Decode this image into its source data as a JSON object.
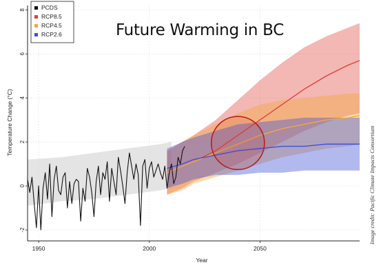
{
  "title": "Future Warming in BC",
  "credit": "Image credit: Pacific Climate Impacts Consortium",
  "chart_data": {
    "type": "line",
    "title": "Future Warming in BC",
    "xlabel": "Year",
    "ylabel": "Temperature Change (°C)",
    "xlim": [
      1945,
      2095
    ],
    "ylim": [
      -2.5,
      8.2
    ],
    "xticks": [
      1950,
      2000,
      2050
    ],
    "yticks": [
      -2,
      0,
      2,
      4,
      6,
      8
    ],
    "grid": true,
    "legend": "top-left",
    "colors": {
      "PCDS": "#111111",
      "RCP8.5": "#e0413a",
      "RCP4.5": "#f2a93b",
      "RCP2.6": "#3f4fd6",
      "historical_band": "#d9d9d9"
    },
    "legend_entries": [
      {
        "name": "PCDS",
        "color": "#111111"
      },
      {
        "name": "RCP8.5",
        "color": "#e0413a"
      },
      {
        "name": "RCP4.5",
        "color": "#f2a93b"
      },
      {
        "name": "RCP2.6",
        "color": "#3f4fd6"
      }
    ],
    "observed": {
      "name": "PCDS",
      "x": [
        1945,
        1946,
        1947,
        1948,
        1949,
        1950,
        1951,
        1952,
        1953,
        1954,
        1955,
        1956,
        1957,
        1958,
        1959,
        1960,
        1961,
        1962,
        1963,
        1964,
        1965,
        1966,
        1967,
        1968,
        1969,
        1970,
        1971,
        1972,
        1973,
        1974,
        1975,
        1976,
        1977,
        1978,
        1979,
        1980,
        1981,
        1982,
        1983,
        1984,
        1985,
        1986,
        1987,
        1988,
        1989,
        1990,
        1991,
        1992,
        1993,
        1994,
        1995,
        1996,
        1997,
        1998,
        1999,
        2000,
        2001,
        2002,
        2003,
        2004,
        2005,
        2006,
        2007,
        2008,
        2009,
        2010,
        2011,
        2012,
        2013,
        2014,
        2015,
        2016
      ],
      "y": [
        0.3,
        -0.3,
        0.4,
        -0.8,
        -1.9,
        0.0,
        -2.0,
        -0.1,
        0.6,
        -0.6,
        1.0,
        -1.4,
        0.3,
        0.9,
        -0.2,
        -0.4,
        0.4,
        0.6,
        -1.0,
        0.2,
        -0.8,
        0.1,
        0.3,
        0.2,
        -1.6,
        -0.1,
        -0.7,
        0.8,
        0.4,
        -0.3,
        -1.4,
        0.2,
        0.9,
        -0.4,
        0.6,
        0.3,
        1.1,
        -0.7,
        0.8,
        0.2,
        -0.4,
        1.3,
        0.7,
        0.0,
        -0.8,
        0.6,
        1.5,
        0.9,
        0.3,
        1.0,
        0.5,
        -1.8,
        0.9,
        1.2,
        -0.1,
        0.8,
        1.1,
        0.4,
        0.7,
        1.0,
        0.6,
        0.3,
        0.9,
        -0.1,
        0.6,
        1.0,
        0.1,
        0.4,
        1.3,
        1.0,
        1.6,
        1.8
      ]
    },
    "historical_band": {
      "x": [
        1945,
        1960,
        1975,
        1990,
        2005,
        2010
      ],
      "upper": [
        1.2,
        1.3,
        1.5,
        1.7,
        1.9,
        2.0
      ],
      "lower": [
        -0.9,
        -0.7,
        -0.6,
        -0.4,
        -0.2,
        -0.1
      ]
    },
    "series": [
      {
        "name": "RCP8.5",
        "color": "#e0413a",
        "x": [
          2008,
          2015,
          2020,
          2030,
          2040,
          2050,
          2060,
          2070,
          2080,
          2090,
          2095
        ],
        "y": [
          0.6,
          0.9,
          1.1,
          1.6,
          2.3,
          3.0,
          3.7,
          4.4,
          5.0,
          5.5,
          5.7
        ],
        "upper": [
          1.6,
          2.0,
          2.3,
          3.0,
          3.9,
          4.8,
          5.6,
          6.3,
          6.8,
          7.2,
          7.4
        ],
        "lower": [
          -0.4,
          -0.1,
          0.2,
          0.6,
          1.0,
          1.5,
          2.0,
          2.5,
          2.9,
          3.2,
          3.3
        ]
      },
      {
        "name": "RCP4.5",
        "color": "#f2a93b",
        "x": [
          2008,
          2015,
          2020,
          2030,
          2040,
          2050,
          2060,
          2070,
          2080,
          2090,
          2095
        ],
        "y": [
          0.6,
          0.9,
          1.1,
          1.5,
          1.9,
          2.3,
          2.6,
          2.8,
          3.0,
          3.1,
          3.2
        ],
        "upper": [
          1.6,
          2.0,
          2.3,
          2.8,
          3.3,
          3.7,
          3.9,
          4.0,
          4.1,
          4.2,
          4.2
        ],
        "lower": [
          -0.4,
          -0.2,
          0.1,
          0.4,
          0.7,
          1.0,
          1.3,
          1.5,
          1.7,
          1.8,
          1.9
        ]
      },
      {
        "name": "RCP2.6",
        "color": "#3f4fd6",
        "x": [
          2008,
          2015,
          2020,
          2030,
          2040,
          2050,
          2060,
          2070,
          2080,
          2090,
          2095
        ],
        "y": [
          0.8,
          1.0,
          1.2,
          1.4,
          1.6,
          1.7,
          1.8,
          1.8,
          1.9,
          1.9,
          1.9
        ],
        "upper": [
          1.7,
          2.0,
          2.2,
          2.5,
          2.8,
          2.9,
          3.0,
          3.1,
          3.1,
          3.1,
          3.1
        ],
        "lower": [
          -0.1,
          0.1,
          0.3,
          0.5,
          0.5,
          0.6,
          0.6,
          0.7,
          0.7,
          0.7,
          0.7
        ]
      }
    ],
    "annotations": [
      {
        "type": "circle",
        "x": 2040,
        "y": 1.95,
        "radius_years": 12,
        "color": "#b3201c"
      }
    ]
  }
}
